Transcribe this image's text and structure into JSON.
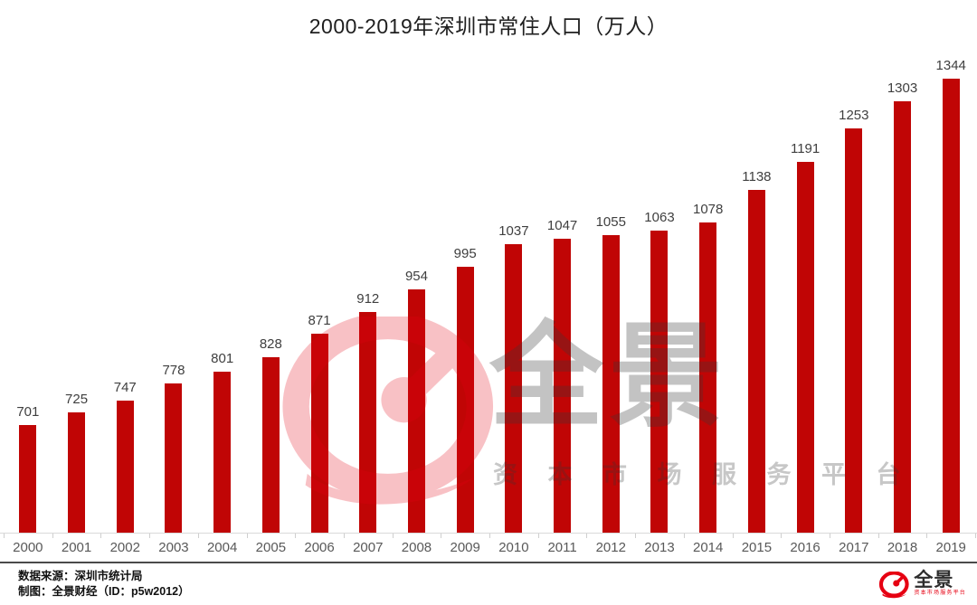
{
  "title": "2000-2019年深圳市常住人口（万人）",
  "chart_data": {
    "type": "bar",
    "title": "2000-2019年深圳市常住人口（万人）",
    "categories": [
      "2000",
      "2001",
      "2002",
      "2003",
      "2004",
      "2005",
      "2006",
      "2007",
      "2008",
      "2009",
      "2010",
      "2011",
      "2012",
      "2013",
      "2014",
      "2015",
      "2016",
      "2017",
      "2018",
      "2019"
    ],
    "values": [
      701,
      725,
      747,
      778,
      801,
      828,
      871,
      912,
      954,
      995,
      1037,
      1047,
      1055,
      1063,
      1078,
      1138,
      1191,
      1253,
      1303,
      1344
    ],
    "xlabel": "",
    "ylabel": "",
    "unit": "万人",
    "ylim": [
      500,
      1400
    ],
    "grid": false,
    "legend": "none",
    "bar_color": "#c00505",
    "value_label_color": "#3f3f3f",
    "axis_label_color": "#595959"
  },
  "watermark": {
    "brand": "全景",
    "tagline": "资 本 市 场 服 务 平 台"
  },
  "footer": {
    "source": "数据来源：深圳市统计局",
    "credit": "制图：全景财经（ID：p5w2012）",
    "logo_brand": "全景",
    "logo_tagline": "资本市场服务平台"
  },
  "colors": {
    "bar": "#c00505",
    "brand_red": "#e60012",
    "divider": "#4a4a4a",
    "axis_line": "#d9d9d9"
  }
}
